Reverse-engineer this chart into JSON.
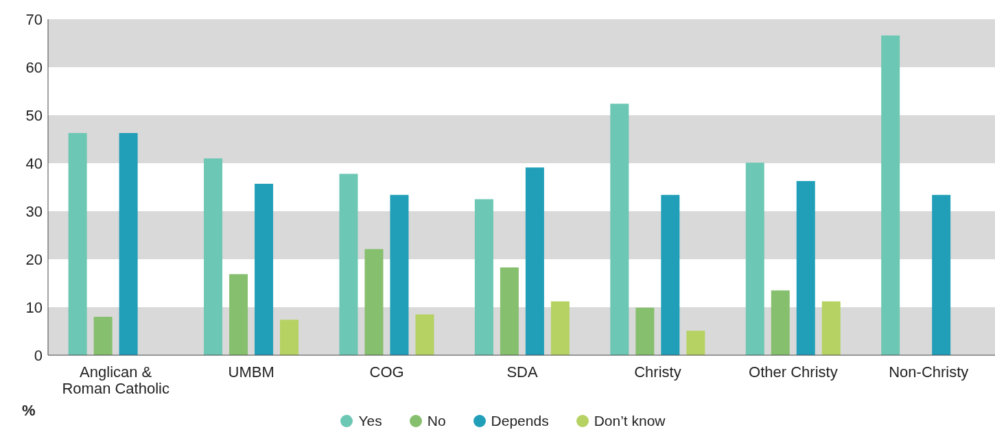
{
  "chart_data": {
    "type": "bar",
    "ylabel": "%",
    "categories": [
      "Anglican & Roman Catholic",
      "UMBM",
      "COG",
      "SDA",
      "Christy",
      "Other Christy",
      "Non-Christy"
    ],
    "series": [
      {
        "name": "Yes",
        "color": "#6cc7b4",
        "values": [
          46.3,
          41.0,
          37.8,
          32.5,
          52.4,
          40.1,
          66.6
        ]
      },
      {
        "name": "No",
        "color": "#86bf6e",
        "values": [
          8.0,
          16.9,
          22.1,
          18.3,
          9.9,
          13.5,
          null
        ]
      },
      {
        "name": "Depends",
        "color": "#229fb8",
        "values": [
          46.3,
          35.7,
          33.4,
          39.1,
          33.4,
          36.3,
          33.4
        ]
      },
      {
        "name": "Don’t know",
        "color": "#b5d262",
        "values": [
          null,
          7.4,
          8.5,
          11.2,
          5.1,
          11.2,
          null
        ]
      }
    ],
    "ylim": [
      0,
      70
    ],
    "yticks": [
      0,
      10,
      20,
      30,
      40,
      50,
      60,
      70
    ],
    "grid": false,
    "legend": "bottom",
    "bands": [
      {
        "axis": "y",
        "from": 0,
        "to": 10,
        "color": "#d9d9d9"
      },
      {
        "axis": "y",
        "from": 20,
        "to": 30,
        "color": "#d9d9d9"
      },
      {
        "axis": "y",
        "from": 40,
        "to": 50,
        "color": "#d9d9d9"
      },
      {
        "axis": "y",
        "from": 60,
        "to": 70,
        "color": "#d9d9d9"
      }
    ]
  }
}
